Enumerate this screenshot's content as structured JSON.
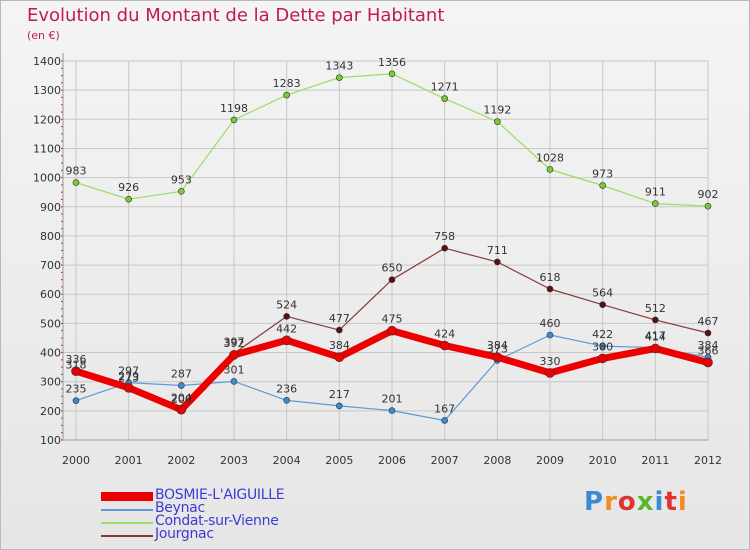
{
  "title": "Evolution du Montant de la Dette par Habitant",
  "subtitle": "(en €)",
  "logo": "Proxiti",
  "colors": {
    "title": "#c2195a",
    "grid": "#c8c8c8",
    "axis_text": "#333333",
    "legend_text": "#3b3bd6"
  },
  "chart_data": {
    "type": "line",
    "x": [
      "2000",
      "2001",
      "2002",
      "2003",
      "2004",
      "2005",
      "2006",
      "2007",
      "2008",
      "2009",
      "2010",
      "2011",
      "2012"
    ],
    "ylim": [
      100,
      1400
    ],
    "yticks": [
      100,
      200,
      300,
      400,
      500,
      600,
      700,
      800,
      900,
      1000,
      1100,
      1200,
      1300,
      1400
    ],
    "grid": true,
    "legend_position": "bottom",
    "series": [
      {
        "name": "Condat-sur-Vienne",
        "color": "#99dd66",
        "marker": "#77cc33",
        "width": 1.2,
        "values": [
          983,
          926,
          953,
          1198,
          1283,
          1343,
          1356,
          1271,
          1192,
          1028,
          973,
          911,
          902
        ]
      },
      {
        "name": "Jourgnac",
        "color": "#8b3a3a",
        "marker": "#5a1010",
        "width": 1.2,
        "values": [
          null,
          null,
          null,
          397,
          524,
          477,
          650,
          758,
          711,
          618,
          564,
          512,
          467
        ]
      },
      {
        "name": "Beynac",
        "color": "#5b9bd5",
        "marker": "#3a8ad6",
        "width": 1.2,
        "values": [
          235,
          297,
          287,
          301,
          236,
          217,
          201,
          167,
          373,
          460,
          422,
          417,
          384
        ]
      },
      {
        "name": "BOSMIE-L'AIGUILLE",
        "color": "#ee0000",
        "marker": "#ee0000",
        "width": 7,
        "values": [
          336,
          279,
          204,
          392,
          442,
          384,
          475,
          424,
          384,
          330,
          380,
          414,
          366
        ]
      }
    ],
    "labels": [
      {
        "x": "2000",
        "y": 983,
        "text": "983"
      },
      {
        "x": "2001",
        "y": 926,
        "text": "926"
      },
      {
        "x": "2002",
        "y": 953,
        "text": "953"
      },
      {
        "x": "2003",
        "y": 1198,
        "text": "1198"
      },
      {
        "x": "2004",
        "y": 1283,
        "text": "1283"
      },
      {
        "x": "2005",
        "y": 1343,
        "text": "1343"
      },
      {
        "x": "2006",
        "y": 1356,
        "text": "1356"
      },
      {
        "x": "2007",
        "y": 1271,
        "text": "1271"
      },
      {
        "x": "2008",
        "y": 1192,
        "text": "1192"
      },
      {
        "x": "2009",
        "y": 1028,
        "text": "1028"
      },
      {
        "x": "2010",
        "y": 973,
        "text": "973"
      },
      {
        "x": "2011",
        "y": 911,
        "text": "911"
      },
      {
        "x": "2012",
        "y": 902,
        "text": "902"
      },
      {
        "x": "2003",
        "y": 397,
        "text": "397"
      },
      {
        "x": "2004",
        "y": 524,
        "text": "524"
      },
      {
        "x": "2005",
        "y": 477,
        "text": "477"
      },
      {
        "x": "2006",
        "y": 650,
        "text": "650"
      },
      {
        "x": "2007",
        "y": 758,
        "text": "758"
      },
      {
        "x": "2008",
        "y": 711,
        "text": "711"
      },
      {
        "x": "2009",
        "y": 618,
        "text": "618"
      },
      {
        "x": "2010",
        "y": 564,
        "text": "564"
      },
      {
        "x": "2011",
        "y": 512,
        "text": "512"
      },
      {
        "x": "2012",
        "y": 467,
        "text": "467"
      },
      {
        "x": "2000",
        "y": 235,
        "text": "235"
      },
      {
        "x": "2001",
        "y": 297,
        "text": "297"
      },
      {
        "x": "2002",
        "y": 287,
        "text": "287"
      },
      {
        "x": "2003",
        "y": 301,
        "text": "301"
      },
      {
        "x": "2004",
        "y": 236,
        "text": "236"
      },
      {
        "x": "2005",
        "y": 217,
        "text": "217"
      },
      {
        "x": "2006",
        "y": 201,
        "text": "201"
      },
      {
        "x": "2007",
        "y": 167,
        "text": "167"
      },
      {
        "x": "2008",
        "y": 373,
        "text": "373"
      },
      {
        "x": "2009",
        "y": 460,
        "text": "460"
      },
      {
        "x": "2010",
        "y": 422,
        "text": "422"
      },
      {
        "x": "2011",
        "y": 417,
        "text": "417"
      },
      {
        "x": "2012",
        "y": 384,
        "text": "384"
      },
      {
        "x": "2000",
        "y": 336,
        "text": "336"
      },
      {
        "x": "2000",
        "y": 318,
        "text": "318"
      },
      {
        "x": "2001",
        "y": 279,
        "text": "279"
      },
      {
        "x": "2001",
        "y": 273,
        "text": "273"
      },
      {
        "x": "2002",
        "y": 204,
        "text": "204"
      },
      {
        "x": "2002",
        "y": 200,
        "text": "200"
      },
      {
        "x": "2003",
        "y": 392,
        "text": "392"
      },
      {
        "x": "2004",
        "y": 442,
        "text": "442"
      },
      {
        "x": "2005",
        "y": 384,
        "text": "384"
      },
      {
        "x": "2006",
        "y": 475,
        "text": "475"
      },
      {
        "x": "2007",
        "y": 424,
        "text": "424"
      },
      {
        "x": "2008",
        "y": 384,
        "text": "384"
      },
      {
        "x": "2009",
        "y": 330,
        "text": "330"
      },
      {
        "x": "2010",
        "y": 380,
        "text": "380"
      },
      {
        "x": "2011",
        "y": 414,
        "text": "414"
      },
      {
        "x": "2012",
        "y": 366,
        "text": "366"
      }
    ]
  },
  "legend": [
    {
      "name": "BOSMIE-L'AIGUILLE",
      "color": "#ee0000"
    },
    {
      "name": "Beynac",
      "color": "#5b9bd5"
    },
    {
      "name": "Condat-sur-Vienne",
      "color": "#99dd66"
    },
    {
      "name": "Jourgnac",
      "color": "#8b3a3a"
    }
  ]
}
